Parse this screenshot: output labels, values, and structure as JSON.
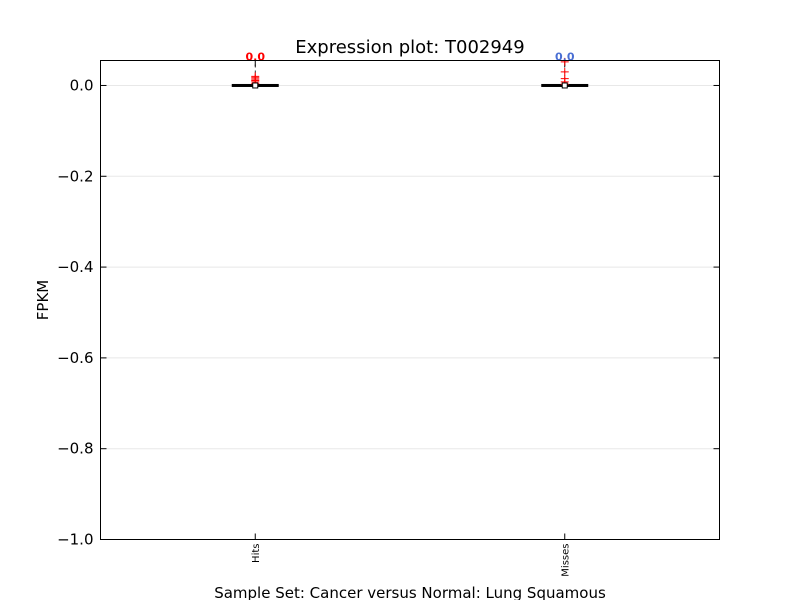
{
  "chart_data": {
    "type": "box",
    "title": "Expression plot: T002949",
    "xlabel": "Sample Set: Cancer versus Normal: Lung Squamous",
    "ylabel": "FPKM",
    "ylim": [
      -1.0,
      0.055
    ],
    "yticks": [
      {
        "value": 0.0,
        "label": "0.0"
      },
      {
        "value": -0.2,
        "label": "−0.2"
      },
      {
        "value": -0.4,
        "label": "−0.4"
      },
      {
        "value": -0.6,
        "label": "−0.6"
      },
      {
        "value": -0.8,
        "label": "−0.8"
      },
      {
        "value": -1.0,
        "label": "−1.0"
      }
    ],
    "grid": "horizontal",
    "categories": [
      "Hits",
      "Misses"
    ],
    "boxes": [
      {
        "category": "Hits",
        "q1": 0.0,
        "median": 0.0,
        "q3": 0.0,
        "whisker_low": 0.0,
        "whisker_high": 0.0,
        "mean": 0.0,
        "outliers": [
          0.004,
          0.008,
          0.011,
          0.014,
          0.017,
          0.02
        ],
        "annotation": "0.0",
        "annotation_color": "#ff0000"
      },
      {
        "category": "Misses",
        "q1": 0.0,
        "median": 0.0,
        "q3": 0.0,
        "whisker_low": 0.0,
        "whisker_high": 0.0,
        "mean": 0.0,
        "outliers": [
          0.003,
          0.008,
          0.015,
          0.03,
          0.052
        ],
        "annotation": "0.0",
        "annotation_color": "#4a6fd4"
      }
    ]
  }
}
